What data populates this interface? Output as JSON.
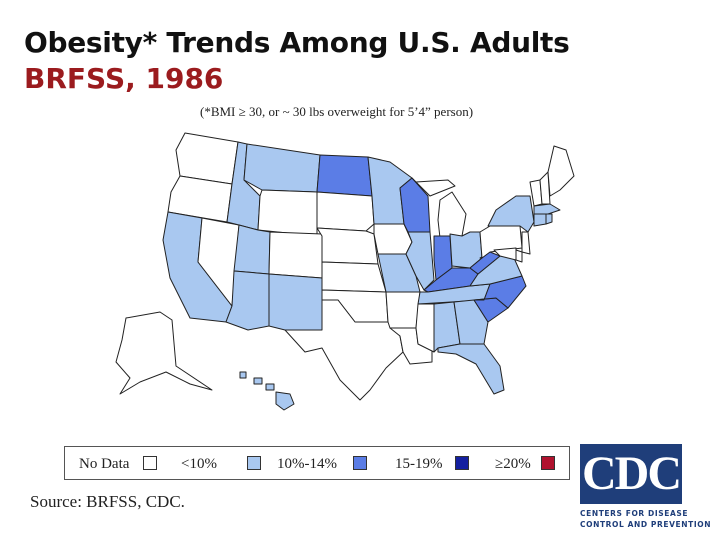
{
  "slide": {
    "title": "Obesity* Trends Among U.S. Adults",
    "subtitle": "BRFSS, 1986",
    "note": "(*BMI ≥ 30, or ~ 30 lbs overweight for 5’4” person)",
    "source": "Source: BRFSS, CDC."
  },
  "colors": {
    "title": "#111111",
    "subtitle": "#9b1b1e",
    "no_data": "#ffffff",
    "lt10": "#a9c8f0",
    "10_14": "#5b7de6",
    "15_19": "#1420a0",
    "gte20": "#b0122e",
    "state_border": "#222222"
  },
  "legend": [
    {
      "label": "No Data",
      "color": "#ffffff"
    },
    {
      "label": "<10%",
      "color": "#a9c8f0"
    },
    {
      "label": "10%-14%",
      "color": "#5b7de6"
    },
    {
      "label": "15-19%",
      "color": "#1420a0"
    },
    {
      "label": "≥20%",
      "color": "#b0122e"
    }
  ],
  "map": {
    "states": [
      {
        "name": "WA",
        "category": "no_data"
      },
      {
        "name": "OR",
        "category": "no_data"
      },
      {
        "name": "CA",
        "category": "lt10"
      },
      {
        "name": "NV",
        "category": "no_data"
      },
      {
        "name": "ID",
        "category": "lt10"
      },
      {
        "name": "MT",
        "category": "lt10"
      },
      {
        "name": "WY",
        "category": "no_data"
      },
      {
        "name": "UT",
        "category": "lt10"
      },
      {
        "name": "AZ",
        "category": "lt10"
      },
      {
        "name": "CO",
        "category": "no_data"
      },
      {
        "name": "NM",
        "category": "lt10"
      },
      {
        "name": "ND",
        "category": "10_14"
      },
      {
        "name": "SD",
        "category": "no_data"
      },
      {
        "name": "NE",
        "category": "no_data"
      },
      {
        "name": "KS",
        "category": "no_data"
      },
      {
        "name": "OK",
        "category": "no_data"
      },
      {
        "name": "TX",
        "category": "no_data"
      },
      {
        "name": "MN",
        "category": "lt10"
      },
      {
        "name": "IA",
        "category": "no_data"
      },
      {
        "name": "MO",
        "category": "lt10"
      },
      {
        "name": "AR",
        "category": "no_data"
      },
      {
        "name": "LA",
        "category": "no_data"
      },
      {
        "name": "WI",
        "category": "10_14"
      },
      {
        "name": "IL",
        "category": "lt10"
      },
      {
        "name": "MI",
        "category": "no_data"
      },
      {
        "name": "IN",
        "category": "10_14"
      },
      {
        "name": "OH",
        "category": "lt10"
      },
      {
        "name": "KY",
        "category": "10_14"
      },
      {
        "name": "TN",
        "category": "lt10"
      },
      {
        "name": "MS",
        "category": "no_data"
      },
      {
        "name": "AL",
        "category": "lt10"
      },
      {
        "name": "GA",
        "category": "lt10"
      },
      {
        "name": "FL",
        "category": "lt10"
      },
      {
        "name": "SC",
        "category": "10_14"
      },
      {
        "name": "NC",
        "category": "10_14"
      },
      {
        "name": "VA",
        "category": "lt10"
      },
      {
        "name": "WV",
        "category": "10_14"
      },
      {
        "name": "PA",
        "category": "no_data"
      },
      {
        "name": "NY",
        "category": "lt10"
      },
      {
        "name": "VT",
        "category": "no_data"
      },
      {
        "name": "NH",
        "category": "no_data"
      },
      {
        "name": "ME",
        "category": "no_data"
      },
      {
        "name": "MA",
        "category": "lt10"
      },
      {
        "name": "RI",
        "category": "lt10"
      },
      {
        "name": "CT",
        "category": "lt10"
      },
      {
        "name": "NJ",
        "category": "no_data"
      },
      {
        "name": "DE",
        "category": "no_data"
      },
      {
        "name": "MD",
        "category": "no_data"
      },
      {
        "name": "AK",
        "category": "no_data"
      },
      {
        "name": "HI",
        "category": "lt10"
      }
    ]
  },
  "logo": {
    "letters": "CDC",
    "line1": "CENTERS FOR DISEASE",
    "line2": "CONTROL AND PREVENTION"
  }
}
